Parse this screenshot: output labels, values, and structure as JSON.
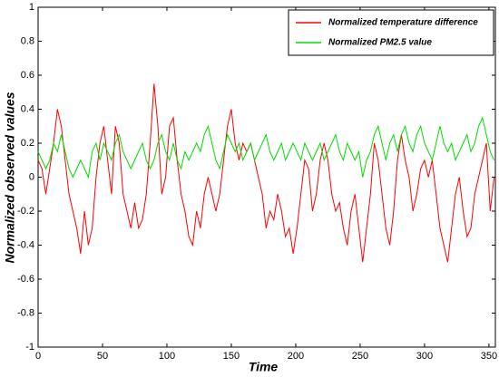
{
  "chart_data": {
    "type": "line",
    "x_label": "Time",
    "y_label": "Normalized observed values",
    "xlim": [
      0,
      355
    ],
    "ylim": [
      -1,
      1
    ],
    "xticks": [
      0,
      50,
      100,
      150,
      200,
      250,
      300,
      350
    ],
    "yticks": [
      -1,
      -0.8,
      -0.6,
      -0.4,
      -0.2,
      0,
      0.2,
      0.4,
      0.6,
      0.8,
      1
    ],
    "legend": "upper right",
    "x": [
      0,
      3,
      6,
      9,
      12,
      15,
      18,
      21,
      24,
      27,
      30,
      33,
      36,
      39,
      42,
      45,
      48,
      51,
      54,
      57,
      60,
      63,
      66,
      69,
      72,
      75,
      78,
      81,
      84,
      87,
      90,
      93,
      96,
      99,
      102,
      105,
      108,
      111,
      114,
      117,
      120,
      123,
      126,
      129,
      132,
      135,
      138,
      141,
      144,
      147,
      150,
      153,
      156,
      159,
      162,
      165,
      168,
      171,
      174,
      177,
      180,
      183,
      186,
      189,
      192,
      195,
      198,
      201,
      204,
      207,
      210,
      213,
      216,
      219,
      222,
      225,
      228,
      231,
      234,
      237,
      240,
      243,
      246,
      249,
      252,
      255,
      258,
      261,
      264,
      267,
      270,
      273,
      276,
      279,
      282,
      285,
      288,
      291,
      294,
      297,
      300,
      303,
      306,
      309,
      312,
      315,
      318,
      321,
      324,
      327,
      330,
      333,
      336,
      339,
      342,
      345,
      348,
      351,
      354
    ],
    "series": [
      {
        "name": "Normalized temperature difference",
        "color": "#ff0000",
        "values": [
          0.1,
          0.05,
          -0.1,
          0.05,
          0.2,
          0.4,
          0.3,
          0.1,
          -0.1,
          -0.2,
          -0.3,
          -0.45,
          -0.2,
          -0.4,
          -0.3,
          0.0,
          0.2,
          0.3,
          0.1,
          -0.1,
          0.3,
          0.2,
          -0.1,
          -0.2,
          -0.3,
          -0.15,
          -0.3,
          -0.25,
          -0.1,
          0.2,
          0.55,
          0.3,
          -0.1,
          0.0,
          0.3,
          0.35,
          0.1,
          -0.1,
          -0.2,
          -0.35,
          -0.4,
          -0.2,
          -0.3,
          -0.1,
          0.0,
          -0.1,
          -0.2,
          -0.1,
          0.1,
          0.3,
          0.4,
          0.2,
          0.1,
          0.2,
          0.15,
          0.2,
          0.1,
          0.0,
          -0.1,
          -0.3,
          -0.2,
          -0.25,
          -0.1,
          -0.2,
          -0.35,
          -0.3,
          -0.45,
          -0.3,
          -0.1,
          0.1,
          0.05,
          -0.2,
          -0.1,
          0.1,
          0.2,
          0.1,
          -0.1,
          -0.2,
          -0.15,
          -0.3,
          -0.4,
          -0.2,
          -0.1,
          -0.3,
          -0.5,
          -0.3,
          -0.1,
          0.2,
          0.1,
          -0.1,
          -0.3,
          -0.4,
          -0.2,
          0.1,
          0.25,
          0.1,
          0.0,
          -0.2,
          -0.1,
          0.05,
          0.1,
          0.0,
          0.1,
          -0.1,
          -0.3,
          -0.4,
          -0.5,
          -0.3,
          -0.1,
          0.0,
          -0.2,
          -0.35,
          -0.3,
          -0.1,
          0.0,
          0.1,
          0.2,
          -0.2,
          0.0
        ]
      },
      {
        "name": "Normalized PM2.5 value",
        "color": "#00dd00",
        "values": [
          0.15,
          0.1,
          0.05,
          0.1,
          0.2,
          0.15,
          0.25,
          0.15,
          0.05,
          0.0,
          0.05,
          0.1,
          0.05,
          0.0,
          0.15,
          0.2,
          0.1,
          0.2,
          0.15,
          0.1,
          0.2,
          0.25,
          0.15,
          0.1,
          0.05,
          0.1,
          0.15,
          0.2,
          0.1,
          0.05,
          0.1,
          0.2,
          0.25,
          0.15,
          0.1,
          0.2,
          0.1,
          0.05,
          0.15,
          0.1,
          0.15,
          0.2,
          0.15,
          0.25,
          0.3,
          0.2,
          0.1,
          0.05,
          0.15,
          0.25,
          0.2,
          0.15,
          0.2,
          0.1,
          0.15,
          0.2,
          0.1,
          0.15,
          0.2,
          0.25,
          0.15,
          0.1,
          0.15,
          0.2,
          0.1,
          0.15,
          0.2,
          0.15,
          0.1,
          0.2,
          0.15,
          0.1,
          0.15,
          0.2,
          0.1,
          0.15,
          0.2,
          0.25,
          0.15,
          0.1,
          0.2,
          0.15,
          0.1,
          0.15,
          0.0,
          0.1,
          0.15,
          0.25,
          0.3,
          0.2,
          0.1,
          0.2,
          0.25,
          0.15,
          0.25,
          0.3,
          0.2,
          0.15,
          0.25,
          0.3,
          0.2,
          0.15,
          0.1,
          0.2,
          0.3,
          0.2,
          0.15,
          0.2,
          0.1,
          0.15,
          0.2,
          0.25,
          0.15,
          0.2,
          0.3,
          0.35,
          0.25,
          0.15,
          0.1
        ]
      }
    ]
  }
}
